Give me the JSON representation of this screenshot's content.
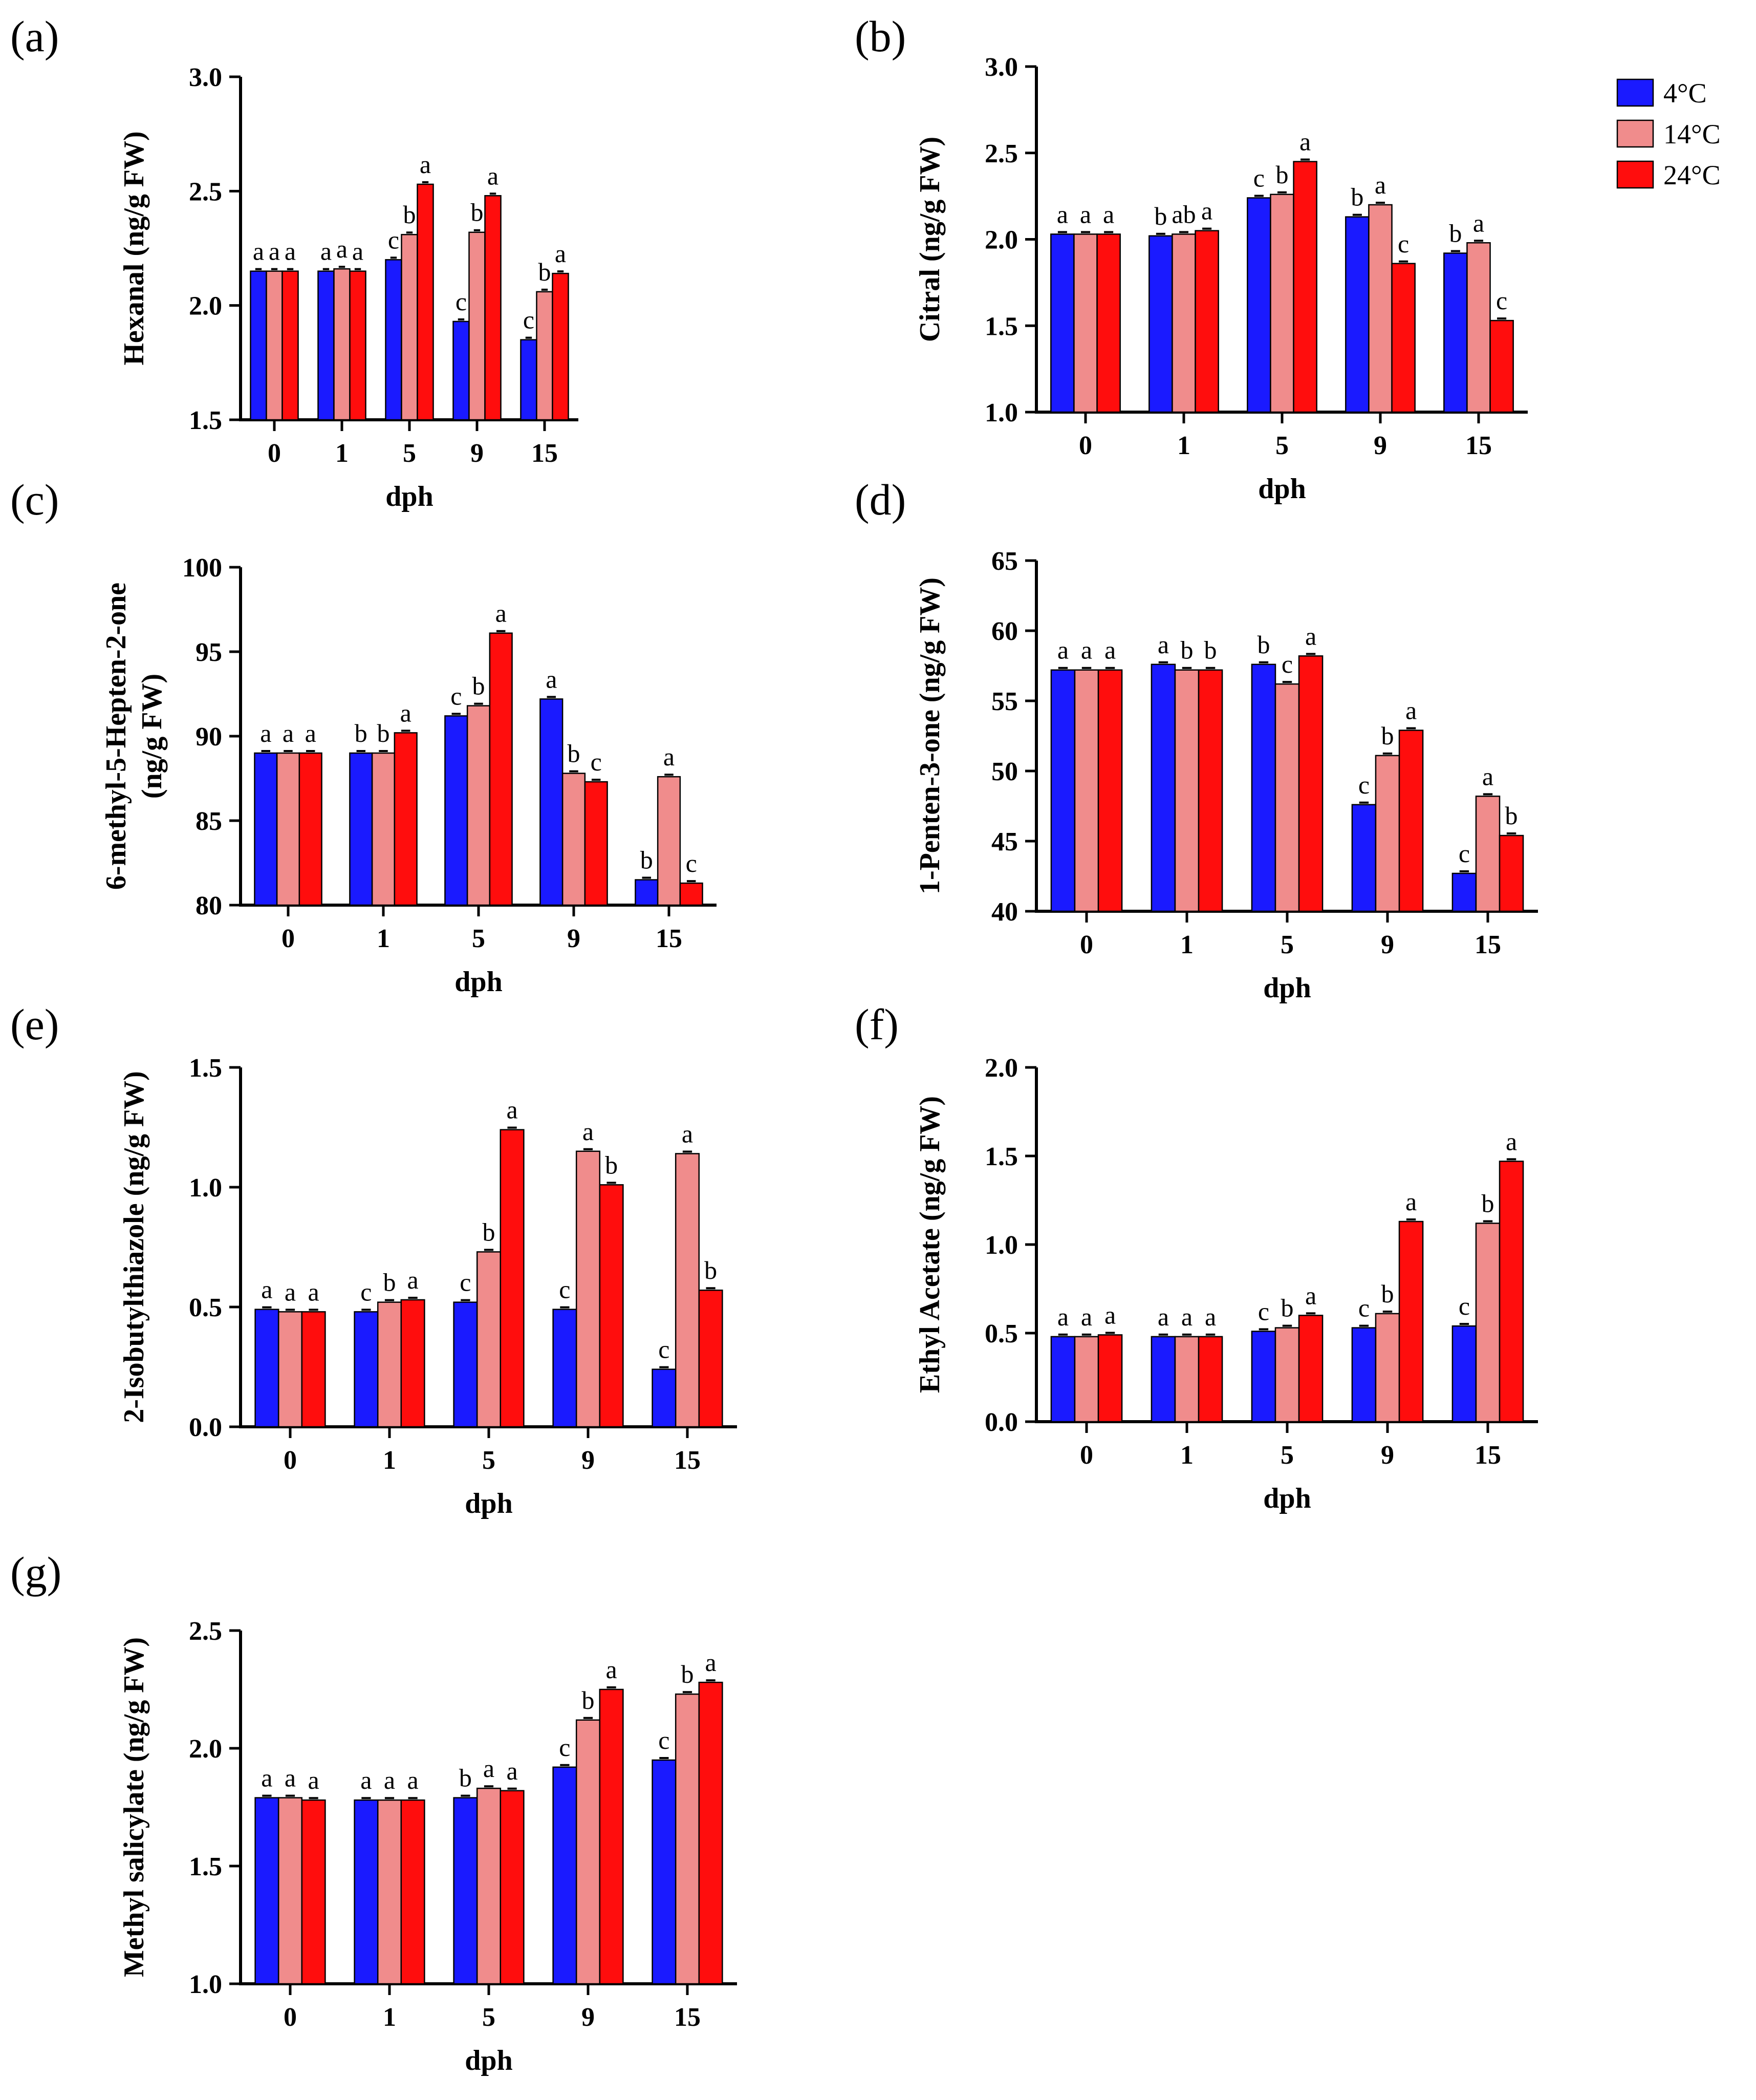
{
  "figure": {
    "xlabel": "dph",
    "series_names": [
      "4°C",
      "14°C",
      "24°C"
    ],
    "colors": [
      "#1a1aff",
      "#f08c8c",
      "#ff0d0d"
    ]
  },
  "chart_data": [
    {
      "label": "(a)",
      "type": "bar",
      "categories": [
        "0",
        "1",
        "5",
        "9",
        "15"
      ],
      "xlabel": "dph",
      "ylabel": "Hexanal (ng/g FW)",
      "ylim": [
        1.5,
        3.0
      ],
      "yticks": [
        "1.5",
        "2.0",
        "2.5",
        "3.0"
      ],
      "series": [
        {
          "name": "4°C",
          "values": [
            2.15,
            2.15,
            2.2,
            1.93,
            1.85
          ],
          "sig": [
            "a",
            "a",
            "c",
            "c",
            "c"
          ]
        },
        {
          "name": "14°C",
          "values": [
            2.15,
            2.16,
            2.31,
            2.32,
            2.06
          ],
          "sig": [
            "a",
            "a",
            "b",
            "b",
            "b"
          ]
        },
        {
          "name": "24°C",
          "values": [
            2.15,
            2.15,
            2.53,
            2.48,
            2.14
          ],
          "sig": [
            "a",
            "a",
            "a",
            "a",
            "a"
          ]
        }
      ]
    },
    {
      "label": "(b)",
      "type": "bar",
      "categories": [
        "0",
        "1",
        "5",
        "9",
        "15"
      ],
      "xlabel": "dph",
      "ylabel": "Citral (ng/g FW)",
      "ylim": [
        1.0,
        3.0
      ],
      "yticks": [
        "1.0",
        "1.5",
        "2.0",
        "2.5",
        "3.0"
      ],
      "series": [
        {
          "name": "4°C",
          "values": [
            2.03,
            2.02,
            2.24,
            2.13,
            1.92
          ],
          "sig": [
            "a",
            "b",
            "c",
            "b",
            "b"
          ]
        },
        {
          "name": "14°C",
          "values": [
            2.03,
            2.03,
            2.26,
            2.2,
            1.98
          ],
          "sig": [
            "a",
            "ab",
            "b",
            "a",
            "a"
          ]
        },
        {
          "name": "24°C",
          "values": [
            2.03,
            2.05,
            2.45,
            1.86,
            1.53
          ],
          "sig": [
            "a",
            "a",
            "a",
            "c",
            "c"
          ]
        }
      ]
    },
    {
      "label": "(c)",
      "type": "bar",
      "categories": [
        "0",
        "1",
        "5",
        "9",
        "15"
      ],
      "xlabel": "dph",
      "ylabel": "6-methyl-5-Hepten-2-one (ng/g FW)",
      "ylabel_lines": [
        "6-methyl-5-Hepten-2-one",
        "(ng/g FW)"
      ],
      "ylim": [
        80,
        100
      ],
      "yticks": [
        "80",
        "85",
        "90",
        "95",
        "100"
      ],
      "series": [
        {
          "name": "4°C",
          "values": [
            89.0,
            89.0,
            91.2,
            92.2,
            81.5
          ],
          "sig": [
            "a",
            "b",
            "c",
            "a",
            "b"
          ]
        },
        {
          "name": "14°C",
          "values": [
            89.0,
            89.0,
            91.8,
            87.8,
            87.6
          ],
          "sig": [
            "a",
            "b",
            "b",
            "b",
            "a"
          ]
        },
        {
          "name": "24°C",
          "values": [
            89.0,
            90.2,
            96.1,
            87.3,
            81.3
          ],
          "sig": [
            "a",
            "a",
            "a",
            "c",
            "c"
          ]
        }
      ]
    },
    {
      "label": "(d)",
      "type": "bar",
      "categories": [
        "0",
        "1",
        "5",
        "9",
        "15"
      ],
      "xlabel": "dph",
      "ylabel": "1-Penten-3-one (ng/g FW)",
      "ylim": [
        40,
        65
      ],
      "yticks": [
        "40",
        "45",
        "50",
        "55",
        "60",
        "65"
      ],
      "series": [
        {
          "name": "4°C",
          "values": [
            57.2,
            57.6,
            57.6,
            47.6,
            42.7
          ],
          "sig": [
            "a",
            "a",
            "b",
            "c",
            "c"
          ]
        },
        {
          "name": "14°C",
          "values": [
            57.2,
            57.2,
            56.2,
            51.1,
            48.2
          ],
          "sig": [
            "a",
            "b",
            "c",
            "b",
            "a"
          ]
        },
        {
          "name": "24°C",
          "values": [
            57.2,
            57.2,
            58.2,
            52.9,
            45.4
          ],
          "sig": [
            "a",
            "b",
            "a",
            "a",
            "b"
          ]
        }
      ]
    },
    {
      "label": "(e)",
      "type": "bar",
      "categories": [
        "0",
        "1",
        "5",
        "9",
        "15"
      ],
      "xlabel": "dph",
      "ylabel": "2-Isobutylthiazole (ng/g FW)",
      "ylim": [
        0.0,
        1.5
      ],
      "yticks": [
        "0.0",
        "0.5",
        "1.0",
        "1.5"
      ],
      "series": [
        {
          "name": "4°C",
          "values": [
            0.49,
            0.48,
            0.52,
            0.49,
            0.24
          ],
          "sig": [
            "a",
            "c",
            "c",
            "c",
            "c"
          ]
        },
        {
          "name": "14°C",
          "values": [
            0.48,
            0.52,
            0.73,
            1.15,
            1.14
          ],
          "sig": [
            "a",
            "b",
            "b",
            "a",
            "a"
          ]
        },
        {
          "name": "24°C",
          "values": [
            0.48,
            0.53,
            1.24,
            1.01,
            0.57
          ],
          "sig": [
            "a",
            "a",
            "a",
            "b",
            "b"
          ]
        }
      ]
    },
    {
      "label": "(f)",
      "type": "bar",
      "categories": [
        "0",
        "1",
        "5",
        "9",
        "15"
      ],
      "xlabel": "dph",
      "ylabel": "Ethyl Acetate (ng/g FW)",
      "ylim": [
        0.0,
        2.0
      ],
      "yticks": [
        "0.0",
        "0.5",
        "1.0",
        "1.5",
        "2.0"
      ],
      "series": [
        {
          "name": "4°C",
          "values": [
            0.48,
            0.48,
            0.51,
            0.53,
            0.54
          ],
          "sig": [
            "a",
            "a",
            "c",
            "c",
            "c"
          ]
        },
        {
          "name": "14°C",
          "values": [
            0.48,
            0.48,
            0.53,
            0.61,
            1.12
          ],
          "sig": [
            "a",
            "a",
            "b",
            "b",
            "b"
          ]
        },
        {
          "name": "24°C",
          "values": [
            0.49,
            0.48,
            0.6,
            1.13,
            1.47
          ],
          "sig": [
            "a",
            "a",
            "a",
            "a",
            "a"
          ]
        }
      ]
    },
    {
      "label": "(g)",
      "type": "bar",
      "categories": [
        "0",
        "1",
        "5",
        "9",
        "15"
      ],
      "xlabel": "dph",
      "ylabel": "Methyl salicylate (ng/g FW)",
      "ylim": [
        1.0,
        2.5
      ],
      "yticks": [
        "1.0",
        "1.5",
        "2.0",
        "2.5"
      ],
      "series": [
        {
          "name": "4°C",
          "values": [
            1.79,
            1.78,
            1.79,
            1.92,
            1.95
          ],
          "sig": [
            "a",
            "a",
            "b",
            "c",
            "c"
          ]
        },
        {
          "name": "14°C",
          "values": [
            1.79,
            1.78,
            1.83,
            2.12,
            2.23
          ],
          "sig": [
            "a",
            "a",
            "a",
            "b",
            "b"
          ]
        },
        {
          "name": "24°C",
          "values": [
            1.78,
            1.78,
            1.82,
            2.25,
            2.28
          ],
          "sig": [
            "a",
            "a",
            "a",
            "a",
            "a"
          ]
        }
      ]
    }
  ]
}
